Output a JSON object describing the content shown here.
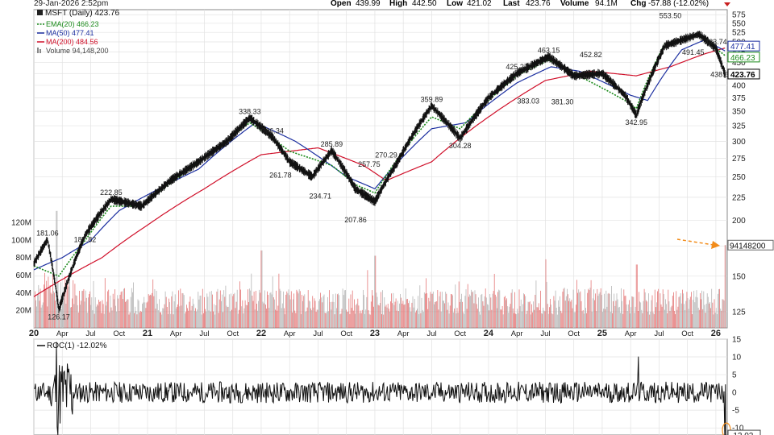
{
  "header": {
    "datetime": "29-Jan-2026 2:52pm",
    "open_label": "Open",
    "open": "439.99",
    "high_label": "High",
    "high": "442.50",
    "low_label": "Low",
    "low": "421.02",
    "last_label": "Last",
    "last": "423.76",
    "volume_label": "Volume",
    "volume": "94.1M",
    "chg_label": "Chg",
    "chg": "-57.88 (-12.02%)"
  },
  "legend": {
    "symbol": "MSFT (Daily) 423.76",
    "ema20": "EMA(20) 466.23",
    "ma50": "MA(50) 477.41",
    "ma200": "MA(200) 484.56",
    "volume": "Volume 94,148,200"
  },
  "roc_legend": "ROC(1) -12.02%",
  "colors": {
    "price": "#111111",
    "ema20": "#1a8a1a",
    "ma50": "#1c2fa0",
    "ma200": "#d0102a",
    "volume_up": "#a8a8a8",
    "volume_down": "#e06060",
    "arrow": "#f28c1a",
    "grid": "#e2e2e2",
    "last_box": "#000000"
  },
  "chart_data": [
    {
      "type": "line",
      "title": "MSFT (Daily) 423.76",
      "x_tick_labels": [
        "20",
        "Apr",
        "Jul",
        "Oct",
        "21",
        "Apr",
        "Jul",
        "Oct",
        "22",
        "Apr",
        "Jul",
        "Oct",
        "23",
        "Apr",
        "Jul",
        "Oct",
        "24",
        "Apr",
        "Jul",
        "Oct",
        "25",
        "Apr",
        "Jul",
        "Oct",
        "26"
      ],
      "y_tick_labels": [
        "575",
        "550",
        "525",
        "500",
        "475",
        "450",
        "425",
        "400",
        "375",
        "350",
        "325",
        "300",
        "275",
        "250",
        "225",
        "200",
        "175",
        "150",
        "125"
      ],
      "yscale": "log",
      "ylim": [
        115,
        590
      ],
      "xlim": [
        2020.0,
        2026.1
      ],
      "series": [
        {
          "name": "MSFT (Daily) 423.76",
          "x": [
            2020.0,
            2020.12,
            2020.22,
            2020.45,
            2020.68,
            2020.95,
            2021.2,
            2021.45,
            2021.7,
            2021.9,
            2022.1,
            2022.25,
            2022.45,
            2022.62,
            2022.83,
            2023.0,
            2023.2,
            2023.5,
            2023.75,
            2024.0,
            2024.25,
            2024.53,
            2024.75,
            2025.0,
            2025.2,
            2025.3,
            2025.55,
            2025.85,
            2026.0,
            2026.08
          ],
          "values": [
            160,
            181.06,
            126.17,
            185,
            222.85,
            215,
            245,
            270,
            300,
            338.33,
            306.34,
            270,
            250,
            285.89,
            234.71,
            220,
            270,
            359.89,
            304.28,
            375,
            425.27,
            463.15,
            420,
            425,
            380,
            342.95,
            490,
            520,
            483.74,
            423.76
          ]
        },
        {
          "name": "EMA(20) 466.23",
          "x": [
            2020.0,
            2020.22,
            2020.45,
            2020.68,
            2020.95,
            2021.45,
            2021.9,
            2022.25,
            2022.62,
            2022.83,
            2023.0,
            2023.5,
            2023.75,
            2024.25,
            2024.53,
            2024.75,
            2025.2,
            2025.3,
            2025.55,
            2025.85,
            2026.08
          ],
          "values": [
            158,
            150,
            180,
            215,
            215,
            268,
            330,
            285,
            265,
            240,
            230,
            340,
            320,
            420,
            455,
            425,
            370,
            355,
            495,
            515,
            466.23
          ]
        },
        {
          "name": "MA(50) 477.41",
          "x": [
            2020.0,
            2020.25,
            2020.5,
            2020.75,
            2021.45,
            2021.95,
            2022.3,
            2022.75,
            2023.0,
            2023.5,
            2023.8,
            2024.25,
            2024.55,
            2024.8,
            2025.25,
            2025.4,
            2025.7,
            2025.9,
            2026.08
          ],
          "values": [
            155,
            165,
            180,
            210,
            260,
            330,
            300,
            250,
            235,
            320,
            330,
            405,
            440,
            430,
            380,
            370,
            480,
            505,
            477.41
          ]
        },
        {
          "name": "MA(200) 484.56",
          "x": [
            2020.0,
            2020.3,
            2020.6,
            2021.0,
            2021.5,
            2022.0,
            2022.5,
            2022.9,
            2023.1,
            2023.5,
            2024.0,
            2024.5,
            2024.9,
            2025.3,
            2025.6,
            2025.9,
            2026.08
          ],
          "values": [
            135,
            150,
            165,
            195,
            235,
            280,
            290,
            265,
            245,
            270,
            340,
            410,
            430,
            420,
            440,
            470,
            484.56
          ]
        }
      ],
      "annotations": [
        {
          "x": 2020.12,
          "y": 181.06,
          "text": "181.06"
        },
        {
          "x": 2020.22,
          "y": 126.17,
          "text": "126.17"
        },
        {
          "x": 2020.45,
          "y": 187.82,
          "text": "187.82"
        },
        {
          "x": 2020.68,
          "y": 222.85,
          "text": "222.85"
        },
        {
          "x": 2021.9,
          "y": 338.33,
          "text": "338.33"
        },
        {
          "x": 2022.1,
          "y": 306.34,
          "text": "306.34"
        },
        {
          "x": 2022.17,
          "y": 261.78,
          "text": "261.78"
        },
        {
          "x": 2022.62,
          "y": 285.89,
          "text": "285.89"
        },
        {
          "x": 2022.52,
          "y": 234.71,
          "text": "234.71"
        },
        {
          "x": 2022.83,
          "y": 207.86,
          "text": "207.86"
        },
        {
          "x": 2022.95,
          "y": 257.75,
          "text": "257.75"
        },
        {
          "x": 2023.1,
          "y": 270.29,
          "text": "270.29"
        },
        {
          "x": 2023.5,
          "y": 359.89,
          "text": "359.89"
        },
        {
          "x": 2023.75,
          "y": 304.28,
          "text": "304.28"
        },
        {
          "x": 2024.25,
          "y": 425.27,
          "text": "425.27"
        },
        {
          "x": 2024.35,
          "y": 383.03,
          "text": "383.03"
        },
        {
          "x": 2024.53,
          "y": 463.15,
          "text": "463.15"
        },
        {
          "x": 2024.65,
          "y": 381.3,
          "text": "381.30"
        },
        {
          "x": 2024.9,
          "y": 452.82,
          "text": "452.82"
        },
        {
          "x": 2025.3,
          "y": 342.95,
          "text": "342.95"
        },
        {
          "x": 2025.6,
          "y": 553.5,
          "text": "553.50"
        },
        {
          "x": 2025.8,
          "y": 491.45,
          "text": "491.45"
        },
        {
          "x": 2026.0,
          "y": 483.74,
          "text": "483.74"
        },
        {
          "x": 2026.05,
          "y": 438.68,
          "text": "438.68"
        }
      ],
      "right_axis_badges": [
        "477.41",
        "466.23",
        "423.76"
      ]
    },
    {
      "type": "bar",
      "title": "Volume 94,148,200",
      "y_tick_labels": [
        "120M",
        "100M",
        "80M",
        "60M",
        "40M",
        "20M"
      ],
      "ylim": [
        0,
        120
      ],
      "ylabel_unit": "M",
      "last_value_badge": "94148200",
      "last_value": 94.1,
      "typical_value_range": [
        15,
        45
      ],
      "spikes": [
        {
          "x": 2020.2,
          "value": 95
        },
        {
          "x": 2022.0,
          "value": 88
        },
        {
          "x": 2023.0,
          "value": 82
        },
        {
          "x": 2024.5,
          "value": 78
        },
        {
          "x": 2025.3,
          "value": 72
        },
        {
          "x": 2026.08,
          "value": 94.1
        }
      ]
    },
    {
      "type": "line",
      "title": "ROC(1) -12.02%",
      "y_tick_labels": [
        "15",
        "10",
        "5",
        "0",
        "-5",
        "-10"
      ],
      "ylim": [
        -12,
        15
      ],
      "last_value": -12.02,
      "last_value_badge": "-12.02",
      "typical_range": [
        -3,
        3
      ],
      "extremes": [
        {
          "x": 2020.2,
          "value": 14.2
        },
        {
          "x": 2020.21,
          "value": -14.7
        },
        {
          "x": 2025.32,
          "value": 10.1
        },
        {
          "x": 2026.08,
          "value": -12.02
        }
      ]
    }
  ]
}
